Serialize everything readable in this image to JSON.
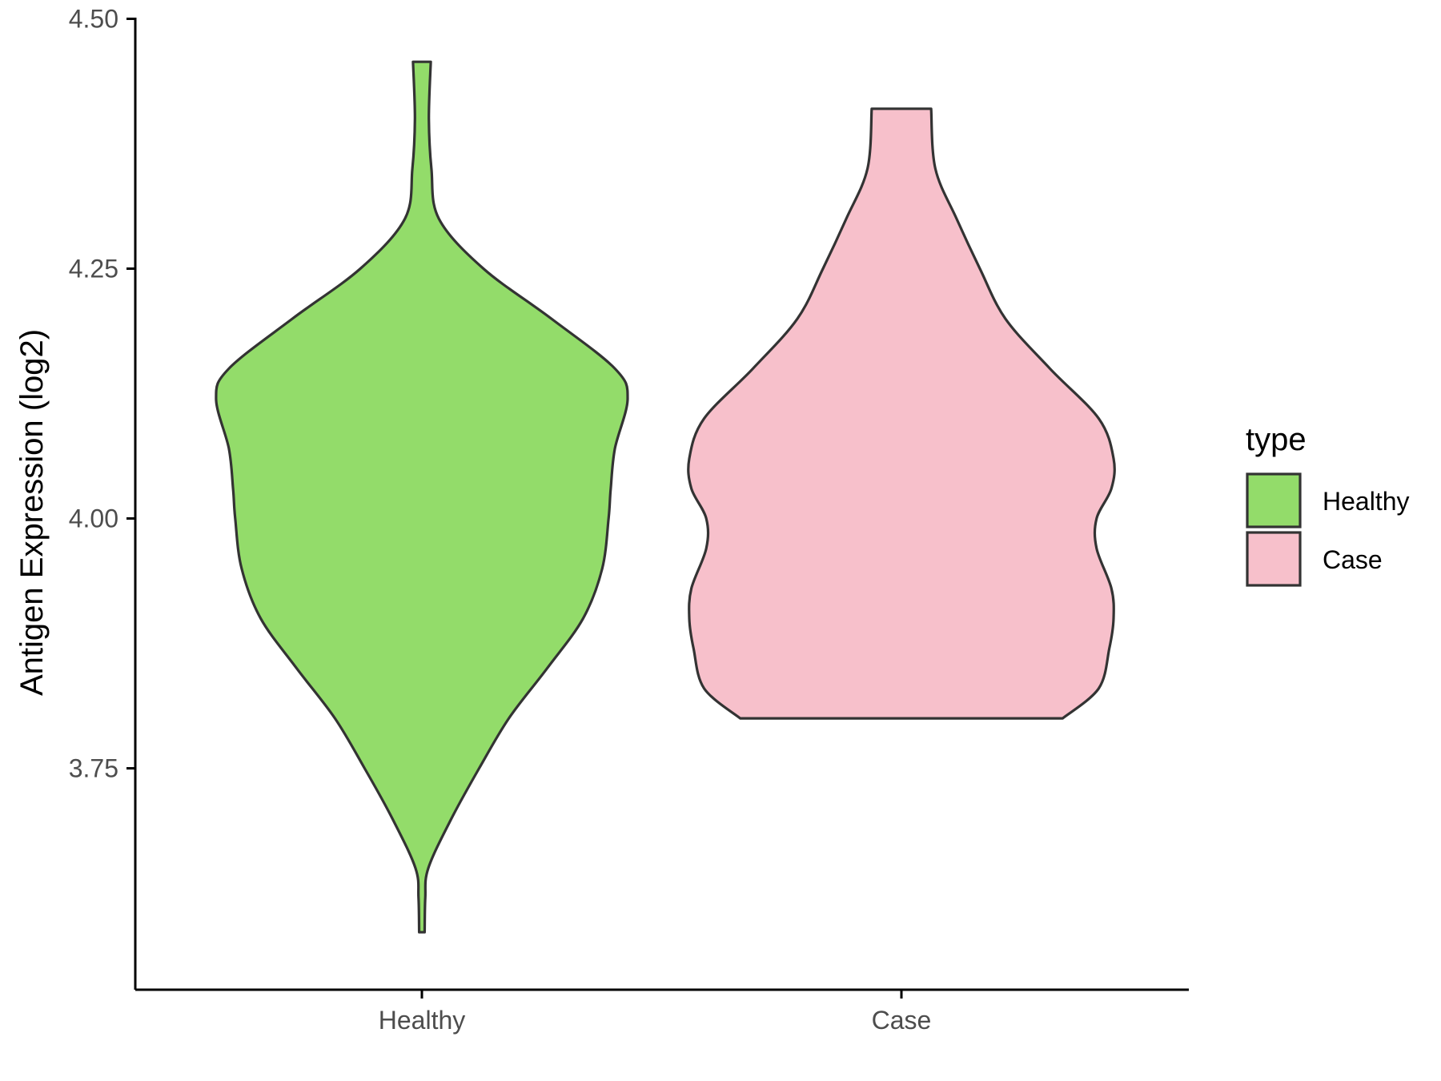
{
  "chart_data": {
    "type": "violin",
    "xlabel": "",
    "ylabel": "Antigen Expression (log2)",
    "ylim": [
      3.53,
      4.5
    ],
    "yticks": [
      "3.75",
      "4.00",
      "4.25",
      "4.50"
    ],
    "categories": [
      "Healthy",
      "Case"
    ],
    "legend": {
      "title": "type",
      "position": "right",
      "entries": [
        {
          "label": "Healthy",
          "color": "#93dc6a"
        },
        {
          "label": "Case",
          "color": "#f7c0cb"
        }
      ]
    },
    "grid": false,
    "series": [
      {
        "category": "Healthy",
        "color": "#93dc6a",
        "min": 3.586,
        "max": 4.457,
        "density_profile": [
          [
            3.586,
            0.013
          ],
          [
            3.62,
            0.016
          ],
          [
            3.65,
            0.03
          ],
          [
            3.7,
            0.14
          ],
          [
            3.75,
            0.27
          ],
          [
            3.8,
            0.41
          ],
          [
            3.85,
            0.59
          ],
          [
            3.9,
            0.76
          ],
          [
            3.95,
            0.85
          ],
          [
            4.0,
            0.88
          ],
          [
            4.03,
            0.89
          ],
          [
            4.07,
            0.91
          ],
          [
            4.12,
            0.97
          ],
          [
            4.15,
            0.91
          ],
          [
            4.2,
            0.61
          ],
          [
            4.25,
            0.29
          ],
          [
            4.3,
            0.08
          ],
          [
            4.35,
            0.045
          ],
          [
            4.4,
            0.033
          ],
          [
            4.457,
            0.042
          ]
        ]
      },
      {
        "category": "Case",
        "color": "#f7c0cb",
        "min": 3.8,
        "max": 4.41,
        "density_profile": [
          [
            3.8,
            0.76
          ],
          [
            3.83,
            0.93
          ],
          [
            3.87,
            0.98
          ],
          [
            3.9,
            1.0
          ],
          [
            3.93,
            0.99
          ],
          [
            3.97,
            0.92
          ],
          [
            4.0,
            0.92
          ],
          [
            4.03,
            0.99
          ],
          [
            4.06,
            1.0
          ],
          [
            4.1,
            0.93
          ],
          [
            4.15,
            0.7
          ],
          [
            4.2,
            0.49
          ],
          [
            4.25,
            0.37
          ],
          [
            4.3,
            0.26
          ],
          [
            4.35,
            0.16
          ],
          [
            4.41,
            0.14
          ]
        ]
      }
    ]
  }
}
